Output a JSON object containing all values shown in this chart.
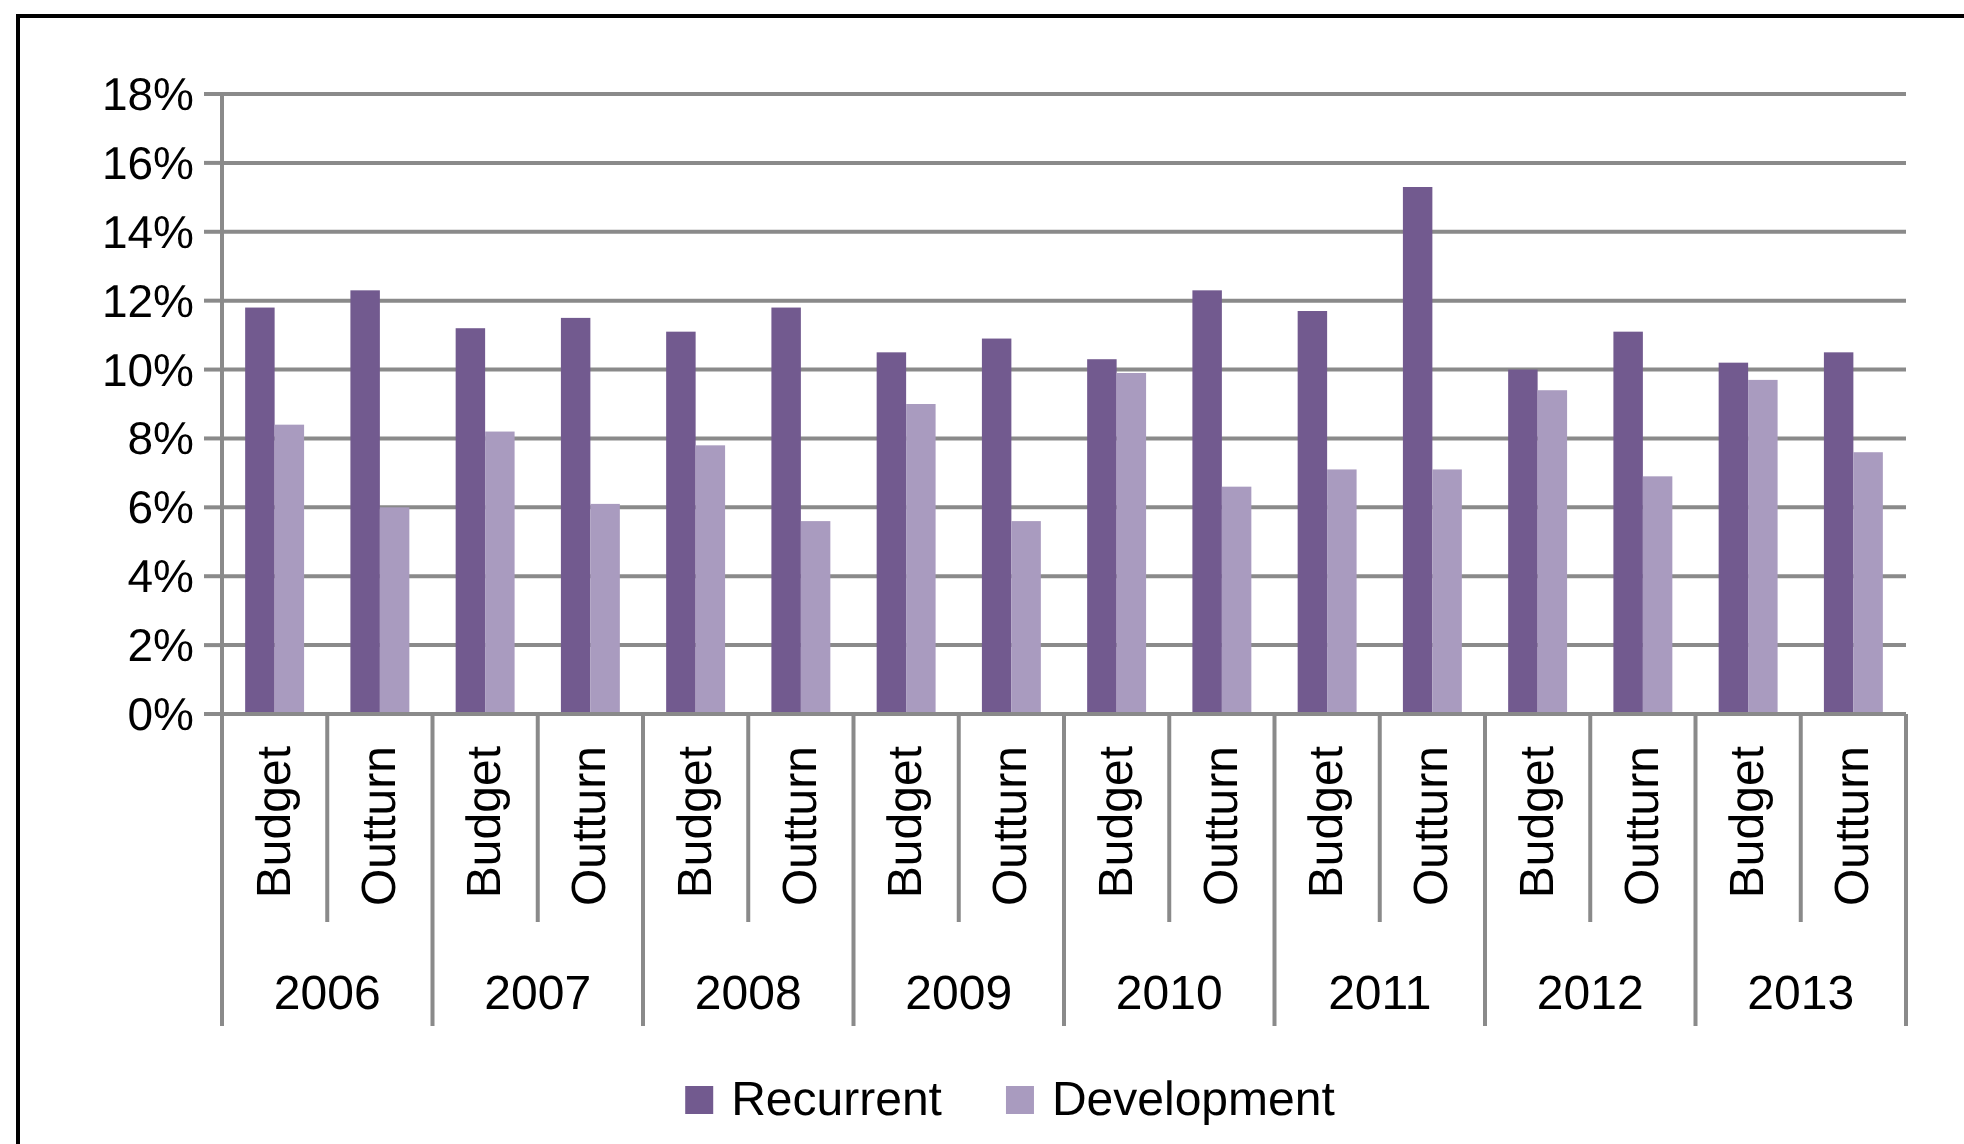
{
  "chart_data": {
    "type": "bar",
    "categories": [
      "Budget",
      "Outturn",
      "Budget",
      "Outturn",
      "Budget",
      "Outturn",
      "Budget",
      "Outturn",
      "Budget",
      "Outturn",
      "Budget",
      "Outturn",
      "Budget",
      "Outturn",
      "Budget",
      "Outturn"
    ],
    "series": [
      {
        "name": "Recurrent",
        "color": "#725a8f",
        "values": [
          11.8,
          12.3,
          11.2,
          11.5,
          11.1,
          11.8,
          10.5,
          10.9,
          10.3,
          12.3,
          11.7,
          15.3,
          10.0,
          11.1,
          10.2,
          10.5
        ]
      },
      {
        "name": "Development",
        "color": "#a99bbf",
        "values": [
          8.4,
          6.0,
          8.2,
          6.1,
          7.8,
          5.6,
          9.0,
          5.6,
          9.9,
          6.6,
          7.1,
          7.1,
          9.4,
          6.9,
          9.7,
          7.6
        ]
      }
    ],
    "ylim": [
      0,
      18
    ],
    "yticks": [
      {
        "value": 0,
        "label": "0%"
      },
      {
        "value": 2,
        "label": "2%"
      },
      {
        "value": 4,
        "label": "4%"
      },
      {
        "value": 6,
        "label": "6%"
      },
      {
        "value": 8,
        "label": "8%"
      },
      {
        "value": 10,
        "label": "10%"
      },
      {
        "value": 12,
        "label": "12%"
      },
      {
        "value": 14,
        "label": "14%"
      },
      {
        "value": 16,
        "label": "16%"
      },
      {
        "value": 18,
        "label": "18%"
      }
    ],
    "grid": "y",
    "legend": "bottom",
    "annotations": [
      "2006",
      "2007",
      "2008",
      "2009",
      "2010",
      "2011",
      "2012",
      "2013"
    ]
  }
}
